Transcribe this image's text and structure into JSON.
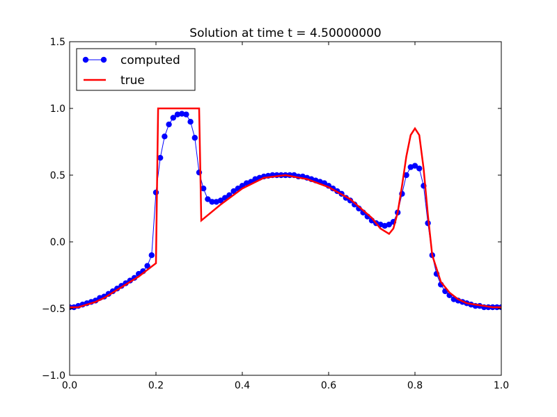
{
  "chart_data": {
    "type": "line",
    "title": "Solution at time t =     4.50000000",
    "xlabel": "",
    "ylabel": "",
    "xlim": [
      0.0,
      1.0
    ],
    "ylim": [
      -1.0,
      1.5
    ],
    "x_ticks": [
      0.0,
      0.2,
      0.4,
      0.6,
      0.8,
      1.0
    ],
    "x_tick_labels": [
      "0.0",
      "0.2",
      "0.4",
      "0.6",
      "0.8",
      "1.0"
    ],
    "y_ticks": [
      -1.0,
      -0.5,
      0.0,
      0.5,
      1.0,
      1.5
    ],
    "y_tick_labels": [
      "−1.0",
      "−0.5",
      "0.0",
      "0.5",
      "1.0",
      "1.5"
    ],
    "grid": false,
    "legend_position": "top-left",
    "series": [
      {
        "name": "computed",
        "style": "line-with-circle-markers",
        "color": "#0000ff",
        "x": [
          0.0,
          0.01,
          0.02,
          0.03,
          0.04,
          0.05,
          0.06,
          0.07,
          0.08,
          0.09,
          0.1,
          0.11,
          0.12,
          0.13,
          0.14,
          0.15,
          0.16,
          0.17,
          0.18,
          0.19,
          0.2,
          0.21,
          0.22,
          0.23,
          0.24,
          0.25,
          0.26,
          0.27,
          0.28,
          0.29,
          0.3,
          0.31,
          0.32,
          0.33,
          0.34,
          0.35,
          0.36,
          0.37,
          0.38,
          0.39,
          0.4,
          0.41,
          0.42,
          0.43,
          0.44,
          0.45,
          0.46,
          0.47,
          0.48,
          0.49,
          0.5,
          0.51,
          0.52,
          0.53,
          0.54,
          0.55,
          0.56,
          0.57,
          0.58,
          0.59,
          0.6,
          0.61,
          0.62,
          0.63,
          0.64,
          0.65,
          0.66,
          0.67,
          0.68,
          0.69,
          0.7,
          0.71,
          0.72,
          0.73,
          0.74,
          0.75,
          0.76,
          0.77,
          0.78,
          0.79,
          0.8,
          0.81,
          0.82,
          0.83,
          0.84,
          0.85,
          0.86,
          0.87,
          0.88,
          0.89,
          0.9,
          0.91,
          0.92,
          0.93,
          0.94,
          0.95,
          0.96,
          0.97,
          0.98,
          0.99,
          1.0
        ],
        "y": [
          -0.49,
          -0.49,
          -0.48,
          -0.47,
          -0.46,
          -0.45,
          -0.44,
          -0.42,
          -0.41,
          -0.39,
          -0.37,
          -0.35,
          -0.33,
          -0.31,
          -0.29,
          -0.27,
          -0.24,
          -0.22,
          -0.18,
          -0.1,
          0.37,
          0.63,
          0.79,
          0.88,
          0.93,
          0.955,
          0.96,
          0.955,
          0.9,
          0.78,
          0.52,
          0.4,
          0.32,
          0.3,
          0.3,
          0.31,
          0.33,
          0.35,
          0.38,
          0.4,
          0.42,
          0.44,
          0.45,
          0.47,
          0.48,
          0.49,
          0.495,
          0.5,
          0.5,
          0.5,
          0.5,
          0.5,
          0.5,
          0.49,
          0.49,
          0.48,
          0.47,
          0.46,
          0.45,
          0.44,
          0.42,
          0.4,
          0.38,
          0.36,
          0.33,
          0.31,
          0.28,
          0.25,
          0.22,
          0.19,
          0.16,
          0.14,
          0.13,
          0.12,
          0.13,
          0.15,
          0.22,
          0.36,
          0.5,
          0.56,
          0.57,
          0.55,
          0.42,
          0.14,
          -0.1,
          -0.24,
          -0.32,
          -0.37,
          -0.4,
          -0.43,
          -0.44,
          -0.45,
          -0.46,
          -0.47,
          -0.48,
          -0.48,
          -0.49,
          -0.49,
          -0.49,
          -0.49,
          -0.49
        ]
      },
      {
        "name": "true",
        "style": "line",
        "color": "#ff0000",
        "x": [
          0.0,
          0.02,
          0.04,
          0.06,
          0.08,
          0.1,
          0.12,
          0.14,
          0.16,
          0.18,
          0.2,
          0.205,
          0.3,
          0.305,
          0.35,
          0.4,
          0.45,
          0.5,
          0.55,
          0.6,
          0.65,
          0.7,
          0.72,
          0.74,
          0.75,
          0.76,
          0.77,
          0.78,
          0.79,
          0.8,
          0.81,
          0.82,
          0.83,
          0.84,
          0.86,
          0.88,
          0.9,
          0.92,
          0.94,
          0.96,
          0.98,
          1.0
        ],
        "y": [
          -0.49,
          -0.49,
          -0.47,
          -0.45,
          -0.42,
          -0.38,
          -0.34,
          -0.3,
          -0.26,
          -0.21,
          -0.16,
          1.0,
          1.0,
          0.16,
          0.28,
          0.4,
          0.48,
          0.5,
          0.47,
          0.41,
          0.32,
          0.18,
          0.1,
          0.06,
          0.1,
          0.22,
          0.42,
          0.64,
          0.8,
          0.85,
          0.8,
          0.55,
          0.2,
          -0.1,
          -0.3,
          -0.38,
          -0.43,
          -0.46,
          -0.47,
          -0.48,
          -0.49,
          -0.49
        ]
      }
    ]
  }
}
